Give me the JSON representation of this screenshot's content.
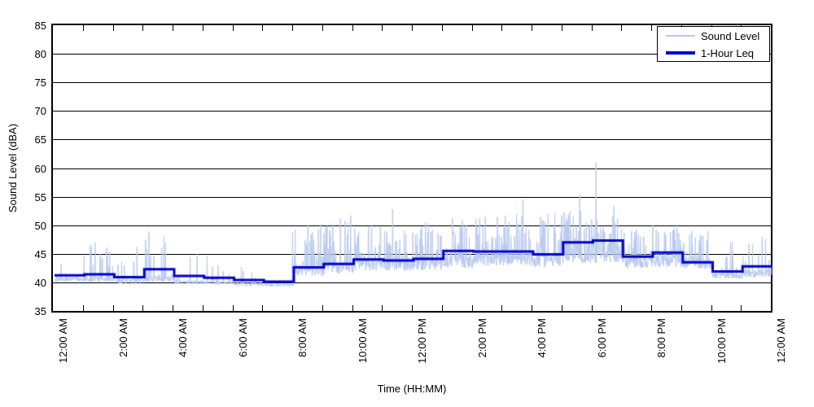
{
  "chart_data": {
    "type": "line",
    "title": "",
    "xlabel": "Time (HH:MM)",
    "ylabel": "Sound Level (dBA)",
    "ylim": [
      35,
      85
    ],
    "ytick_step": 5,
    "ytick_labels": [
      "35",
      "40",
      "45",
      "50",
      "55",
      "60",
      "65",
      "70",
      "75",
      "80",
      "85"
    ],
    "xlim_hours": [
      0,
      24
    ],
    "xtick_hour_step": 1,
    "xlabel_hour_step": 2,
    "xtick_labels": [
      "12:00 AM",
      "2:00 AM",
      "4:00 AM",
      "6:00 AM",
      "8:00 AM",
      "10:00 AM",
      "12:00 PM",
      "2:00 PM",
      "4:00 PM",
      "6:00 PM",
      "8:00 PM",
      "10:00 PM",
      "12:00 AM"
    ],
    "grid": "horizontal-solid",
    "legend_position": "top-right",
    "legend": [
      {
        "label": "Sound Level",
        "color": "#b6c7ee",
        "line_width": 2
      },
      {
        "label": "1-Hour Leq",
        "color": "#0000cc",
        "line_width": 4
      }
    ],
    "series": [
      {
        "name": "1-Hour Leq",
        "type": "step-hourly",
        "hours": [
          0,
          1,
          2,
          3,
          4,
          5,
          6,
          7,
          8,
          9,
          10,
          11,
          12,
          13,
          14,
          15,
          16,
          17,
          18,
          19,
          20,
          21,
          22,
          23
        ],
        "values": [
          41.5,
          41.7,
          41.2,
          42.6,
          41.4,
          41.1,
          40.7,
          40.4,
          42.9,
          43.5,
          44.3,
          44.1,
          44.4,
          45.8,
          45.7,
          45.7,
          45.2,
          47.3,
          47.6,
          44.8,
          45.5,
          43.8,
          42.2,
          43.1
        ]
      },
      {
        "name": "Sound Level",
        "type": "noisy-trace",
        "points_per_hour": 90,
        "per_hour_baseline": [
          40.8,
          40.8,
          40.5,
          40.8,
          40.3,
          40.2,
          39.9,
          39.8,
          42.3,
          42.8,
          43.3,
          43.3,
          43.4,
          43.8,
          44.2,
          44.2,
          43.9,
          44.6,
          44.6,
          43.6,
          43.8,
          43.4,
          41.4,
          41.7
        ],
        "per_hour_peak": [
          46.5,
          47.0,
          47.0,
          48.5,
          46.0,
          45.0,
          43.5,
          44.0,
          50.5,
          52.0,
          50.5,
          49.5,
          51.0,
          51.5,
          52.0,
          52.5,
          52.5,
          53.0,
          52.0,
          49.5,
          50.5,
          49.5,
          47.5,
          48.5
        ],
        "per_hour_spike_density": [
          0.1,
          0.14,
          0.12,
          0.14,
          0.06,
          0.07,
          0.04,
          0.03,
          0.3,
          0.33,
          0.35,
          0.33,
          0.35,
          0.35,
          0.35,
          0.33,
          0.35,
          0.35,
          0.35,
          0.3,
          0.3,
          0.26,
          0.12,
          0.15
        ],
        "per_hour_band_spread": [
          0.9,
          1.0,
          0.9,
          1.0,
          0.7,
          0.7,
          0.6,
          0.5,
          2.0,
          2.2,
          2.2,
          2.2,
          2.2,
          2.2,
          2.2,
          2.2,
          2.2,
          2.2,
          2.2,
          2.0,
          2.0,
          1.8,
          1.1,
          1.2
        ],
        "landmark_spikes": [
          [
            1.2,
            46.8
          ],
          [
            1.35,
            47.2
          ],
          [
            2.75,
            46.5
          ],
          [
            3.15,
            49.2
          ],
          [
            3.65,
            48.3
          ],
          [
            5.1,
            44.8
          ],
          [
            7.95,
            49.0
          ],
          [
            8.9,
            50.5
          ],
          [
            9.9,
            52.0
          ],
          [
            10.6,
            50.3
          ],
          [
            11.3,
            53.1
          ],
          [
            12.4,
            50.8
          ],
          [
            13.3,
            51.5
          ],
          [
            14.4,
            51.8
          ],
          [
            15.65,
            54.8
          ],
          [
            16.5,
            52.3
          ],
          [
            17.55,
            55.7
          ],
          [
            18.1,
            61.3
          ],
          [
            18.7,
            53.6
          ],
          [
            19.45,
            49.5
          ],
          [
            20.8,
            50.5
          ],
          [
            21.3,
            49.3
          ],
          [
            22.6,
            47.4
          ],
          [
            23.65,
            48.3
          ]
        ]
      }
    ]
  },
  "colors": {
    "background": "#ffffff",
    "axis": "#000000",
    "grid": "#000000",
    "text": "#000000",
    "sound_level_line": "#b6c7ee",
    "leq_line": "#0000cc"
  }
}
